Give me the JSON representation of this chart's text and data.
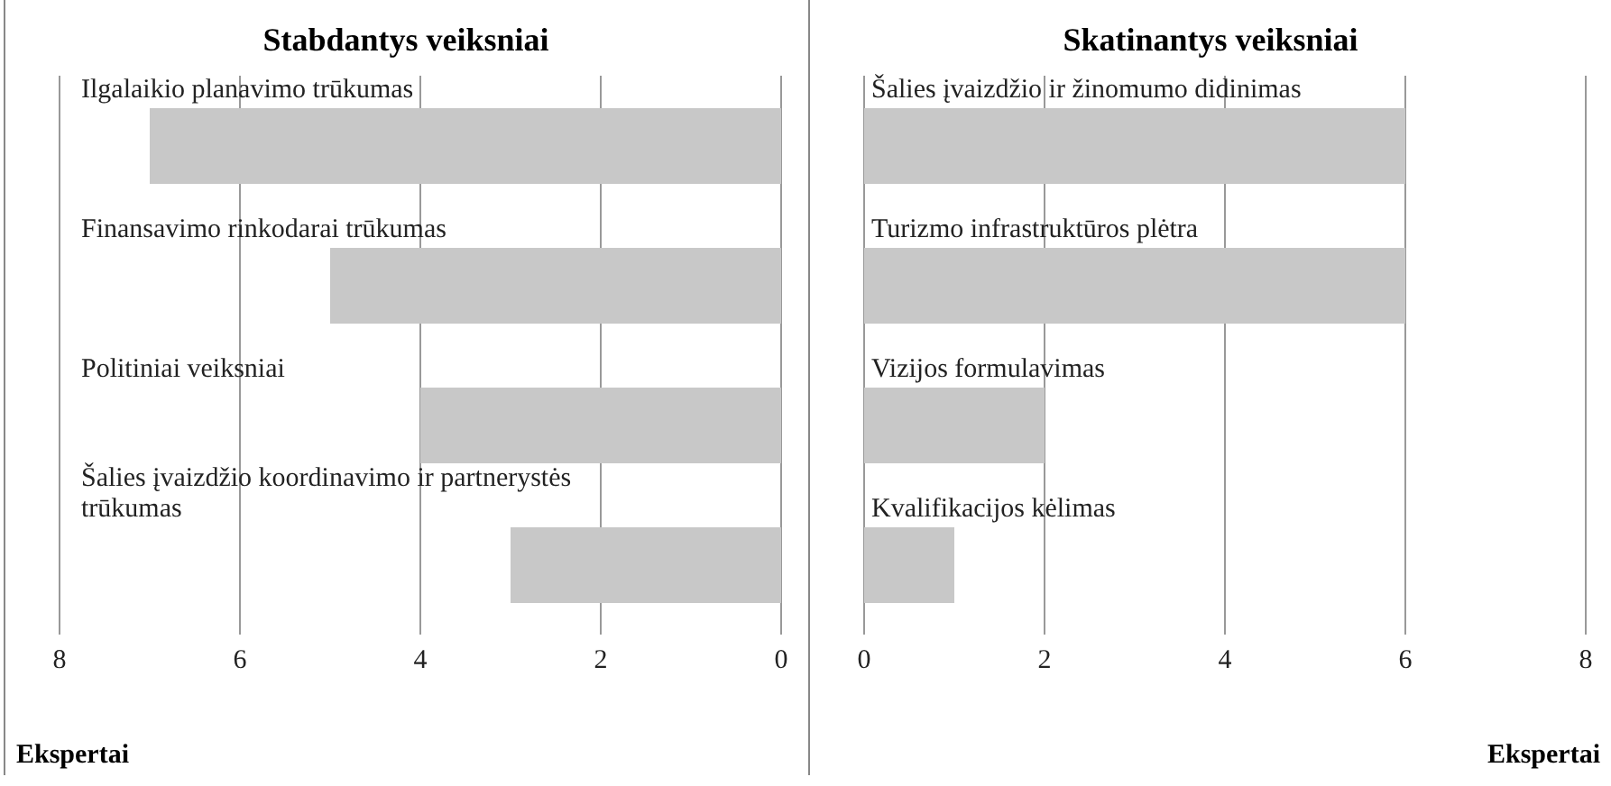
{
  "chart_data": [
    {
      "type": "bar",
      "orientation": "horizontal",
      "title": "Stabdantys veiksniai",
      "xlabel": "Ekspertai",
      "categories": [
        "Ilgalaikio planavimo trūkumas",
        "Finansavimo rinkodarai trūkumas",
        "Politiniai veiksniai",
        "Šalies įvaizdžio koordinavimo ir partnerystės trūkumas"
      ],
      "values": [
        7,
        5,
        4,
        3
      ],
      "color": "#c8c8c8",
      "xlim": [
        8,
        0
      ],
      "xticks": [
        8,
        6,
        4,
        2,
        0
      ],
      "grid": "x",
      "legend": false
    },
    {
      "type": "bar",
      "orientation": "horizontal",
      "title": "Skatinantys veiksniai",
      "xlabel": "Ekspertai",
      "categories": [
        "Šalies įvaizdžio ir žinomumo didinimas",
        "Turizmo infrastruktūros plėtra",
        "Vizijos formulavimas",
        "Kvalifikacijos kėlimas"
      ],
      "values": [
        6,
        6,
        2,
        1
      ],
      "color": "#c8c8c8",
      "xlim": [
        0,
        8
      ],
      "xticks": [
        0,
        2,
        4,
        6,
        8
      ],
      "grid": "x",
      "legend": false
    }
  ]
}
